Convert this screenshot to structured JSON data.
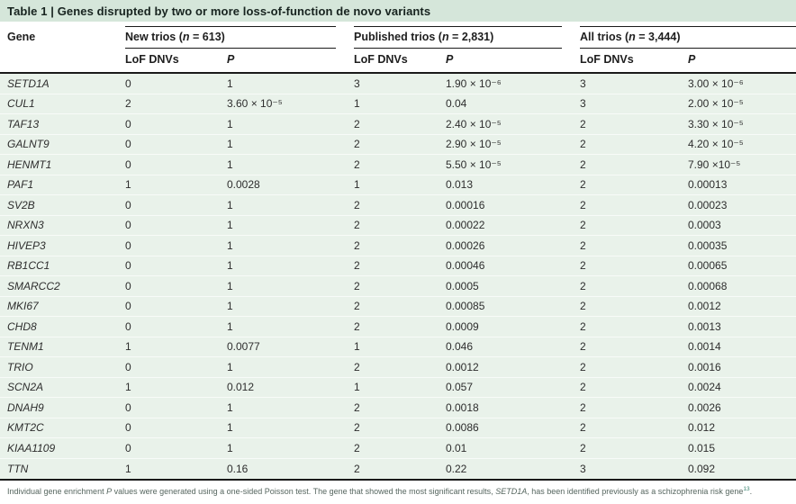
{
  "table": {
    "title": "Table 1 | Genes disrupted by two or more loss-of-function de novo variants",
    "gene_header": "Gene",
    "groups": [
      {
        "pre": "New trios (",
        "n": "n",
        "post": " = 613)"
      },
      {
        "pre": "Published trios (",
        "n": "n",
        "post": " = 2,831)"
      },
      {
        "pre": "All trios (",
        "n": "n",
        "post": " = 3,444)"
      }
    ],
    "subheaders": [
      "LoF DNVs",
      "P",
      "LoF DNVs",
      "P",
      "LoF DNVs",
      "P"
    ],
    "rows": [
      [
        "SETD1A",
        "0",
        "1",
        "3",
        "1.90 × 10⁻⁶",
        "3",
        "3.00 × 10⁻⁶"
      ],
      [
        "CUL1",
        "2",
        "3.60 × 10⁻⁵",
        "1",
        "0.04",
        "3",
        "2.00 × 10⁻⁵"
      ],
      [
        "TAF13",
        "0",
        "1",
        "2",
        "2.40 × 10⁻⁵",
        "2",
        "3.30 × 10⁻⁵"
      ],
      [
        "GALNT9",
        "0",
        "1",
        "2",
        "2.90 × 10⁻⁵",
        "2",
        "4.20 × 10⁻⁵"
      ],
      [
        "HENMT1",
        "0",
        "1",
        "2",
        "5.50 × 10⁻⁵",
        "2",
        "7.90 ×10⁻⁵"
      ],
      [
        "PAF1",
        "1",
        "0.0028",
        "1",
        "0.013",
        "2",
        "0.00013"
      ],
      [
        "SV2B",
        "0",
        "1",
        "2",
        "0.00016",
        "2",
        "0.00023"
      ],
      [
        "NRXN3",
        "0",
        "1",
        "2",
        "0.00022",
        "2",
        "0.0003"
      ],
      [
        "HIVEP3",
        "0",
        "1",
        "2",
        "0.00026",
        "2",
        "0.00035"
      ],
      [
        "RB1CC1",
        "0",
        "1",
        "2",
        "0.00046",
        "2",
        "0.00065"
      ],
      [
        "SMARCC2",
        "0",
        "1",
        "2",
        "0.0005",
        "2",
        "0.00068"
      ],
      [
        "MKI67",
        "0",
        "1",
        "2",
        "0.00085",
        "2",
        "0.0012"
      ],
      [
        "CHD8",
        "0",
        "1",
        "2",
        "0.0009",
        "2",
        "0.0013"
      ],
      [
        "TENM1",
        "1",
        "0.0077",
        "1",
        "0.046",
        "2",
        "0.0014"
      ],
      [
        "TRIO",
        "0",
        "1",
        "2",
        "0.0012",
        "2",
        "0.0016"
      ],
      [
        "SCN2A",
        "1",
        "0.012",
        "1",
        "0.057",
        "2",
        "0.0024"
      ],
      [
        "DNAH9",
        "0",
        "1",
        "2",
        "0.0018",
        "2",
        "0.0026"
      ],
      [
        "KMT2C",
        "0",
        "1",
        "2",
        "0.0086",
        "2",
        "0.012"
      ],
      [
        "KIAA1109",
        "0",
        "1",
        "2",
        "0.01",
        "2",
        "0.015"
      ],
      [
        "TTN",
        "1",
        "0.16",
        "2",
        "0.22",
        "3",
        "0.092"
      ]
    ]
  },
  "footnote": {
    "segments": [
      {
        "text": "Individual gene enrichment ",
        "style": "normal"
      },
      {
        "text": "P",
        "style": "italic"
      },
      {
        "text": " values were generated using a one-sided Poisson test. The gene that showed the most significant results, ",
        "style": "normal"
      },
      {
        "text": "SETD1A",
        "style": "italic"
      },
      {
        "text": ", has been identified previously as a schizophrenia risk gene",
        "style": "normal"
      },
      {
        "text": "13",
        "style": "sup"
      },
      {
        "text": ".",
        "style": "normal"
      }
    ]
  },
  "colors": {
    "title_bar_bg": "#d5e6da",
    "row_bg": "#e9f2ea",
    "rule": "#1a1a1a",
    "footnote_text": "#56665f"
  }
}
